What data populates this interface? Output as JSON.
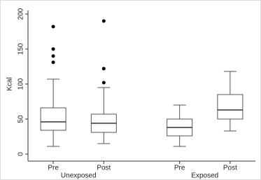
{
  "chart_data": {
    "type": "box",
    "y_label": "Kcal",
    "ylim": [
      0,
      200
    ],
    "yticks": [
      0,
      50,
      100,
      150,
      200
    ],
    "box_color": "#555555",
    "median_color": "#333333",
    "flier_color": "#000000",
    "groups": [
      {
        "label": "Unexposed",
        "categories": [
          "Pre",
          "Post"
        ],
        "boxes": [
          {
            "whislo": 11,
            "q1": 34,
            "med": 46,
            "q3": 66,
            "whishi": 107,
            "fliers": [
              182,
              150,
              140,
              131
            ]
          },
          {
            "whislo": 15,
            "q1": 31,
            "med": 44,
            "q3": 57,
            "whishi": 95,
            "fliers": [
              190,
              122,
              102
            ]
          }
        ]
      },
      {
        "label": "Exposed",
        "categories": [
          "Pre",
          "Post"
        ],
        "boxes": [
          {
            "whislo": 11,
            "q1": 26,
            "med": 38,
            "q3": 50,
            "whishi": 70,
            "fliers": []
          },
          {
            "whislo": 33,
            "q1": 50,
            "med": 63,
            "q3": 85,
            "whishi": 118,
            "fliers": []
          }
        ]
      }
    ]
  }
}
